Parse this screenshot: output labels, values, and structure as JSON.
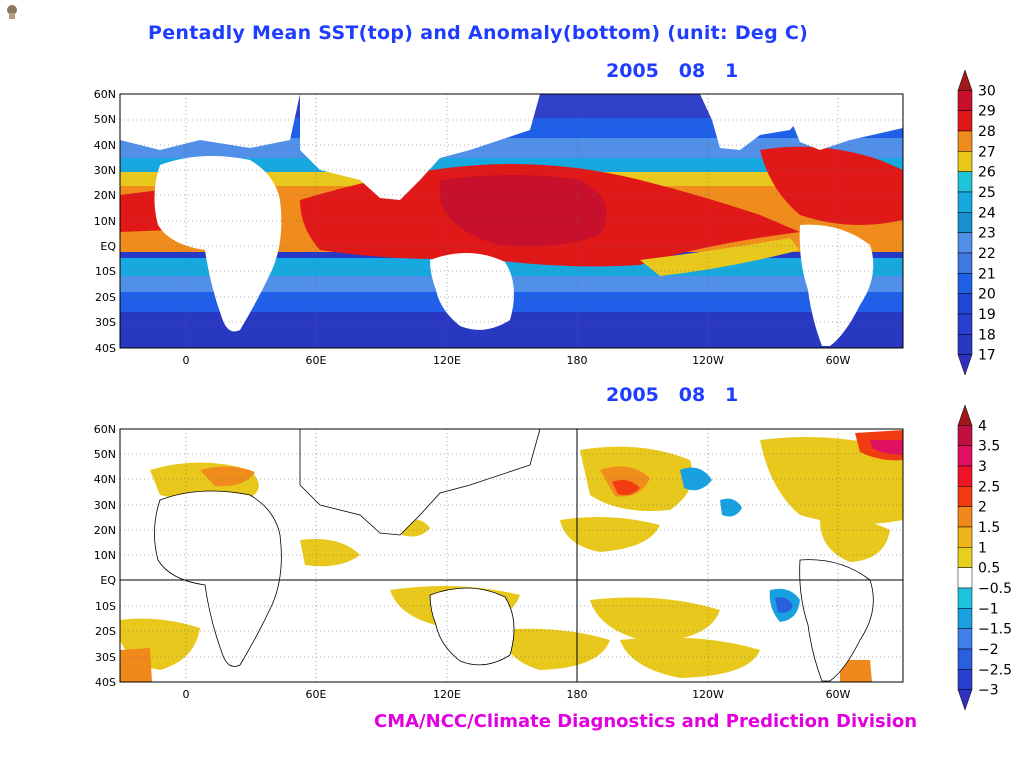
{
  "header": {
    "title": "Pentadly Mean SST(top) and Anomaly(bottom) (unit: Deg C)",
    "date_top": "2005   08   1",
    "date_bottom": "2005   08   1"
  },
  "footer": {
    "credit": "CMA/NCC/Climate Diagnostics and Prediction Division"
  },
  "icons": [
    "app-icon"
  ],
  "maps": {
    "lat_labels": [
      "60N",
      "50N",
      "40N",
      "30N",
      "20N",
      "10N",
      "EQ",
      "10S",
      "20S",
      "30S",
      "40S"
    ],
    "lon_labels": [
      "0",
      "60E",
      "120E",
      "180",
      "120W",
      "60W"
    ]
  },
  "colorbars": {
    "sst": {
      "labels": [
        "30",
        "29",
        "28",
        "27",
        "26",
        "25",
        "24",
        "23",
        "22",
        "21",
        "20",
        "19",
        "18",
        "17"
      ],
      "colors": [
        "#a01818",
        "#c8102c",
        "#e01818",
        "#f08c1c",
        "#e8c81c",
        "#20c4d8",
        "#18a8e0",
        "#1890d0",
        "#5090e8",
        "#4078e0",
        "#2060e8",
        "#2048d8",
        "#2840d0",
        "#2838c0",
        "#3030c0"
      ]
    },
    "anomaly": {
      "labels": [
        "4",
        "3.5",
        "3",
        "2.5",
        "2",
        "1.5",
        "1",
        "0.5",
        "−0.5",
        "−1",
        "−1.5",
        "−2",
        "−2.5",
        "−3"
      ],
      "colors": [
        "#a01818",
        "#c01040",
        "#e01060",
        "#f01428",
        "#f03c10",
        "#f0881c",
        "#f0b41c",
        "#e8d020",
        "#ffffff",
        "#20c4e0",
        "#18a0e0",
        "#4080e8",
        "#2860e0",
        "#2840d0",
        "#3030c0"
      ]
    }
  }
}
